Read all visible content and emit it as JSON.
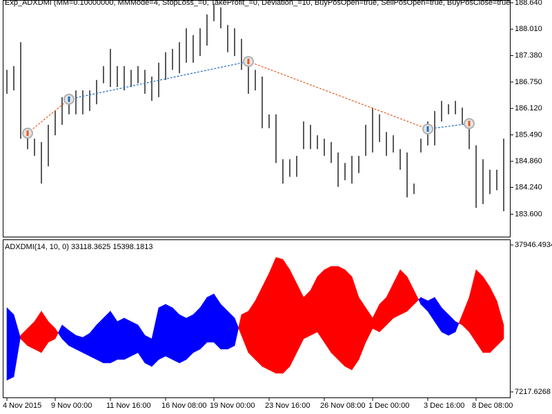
{
  "chart_data": [
    {
      "type": "ohlc",
      "title": "Exp_ADXDMI (MM=0.10000000, MMMode=4, StopLoss_=0, TakeProfit_=0, Deviation_=10, BuyPosOpen=true, SellPosOpen=true, BuyPosClose=true",
      "color": "#000000",
      "high": [
        187.04,
        187.13,
        187.7,
        185.65,
        185.4,
        185.32,
        185.73,
        186.06,
        186.39,
        186.47,
        186.55,
        186.55,
        186.55,
        186.8,
        187.13,
        187.54,
        187.13,
        187.13,
        187.04,
        187.13,
        187.04,
        186.88,
        187.21,
        187.46,
        187.54,
        187.7,
        188.03,
        187.87,
        188.03,
        188.36,
        188.61,
        188.53,
        188.11,
        188.03,
        187.78,
        187.29,
        187.04,
        186.88,
        185.98,
        185.98,
        184.91,
        184.91,
        184.99,
        185.81,
        185.73,
        185.48,
        185.4,
        185.32,
        185.07,
        184.82,
        184.99,
        184.99,
        185.73,
        186.14,
        185.98,
        185.56,
        185.48,
        185.15,
        185.07,
        184.33,
        185.4,
        185.81,
        186.06,
        186.3,
        186.22,
        186.3,
        186.14,
        185.73,
        185.24,
        184.91,
        184.66,
        184.66,
        185.4
      ],
      "low": [
        186.47,
        186.55,
        185.4,
        185.15,
        184.99,
        184.33,
        184.74,
        185.48,
        185.73,
        185.98,
        185.98,
        185.98,
        186.06,
        186.22,
        186.72,
        186.63,
        186.63,
        186.55,
        186.63,
        186.72,
        186.47,
        186.3,
        186.39,
        186.8,
        187.04,
        186.96,
        187.21,
        187.21,
        187.37,
        187.62,
        188.2,
        188.03,
        187.46,
        187.37,
        187.04,
        186.47,
        186.55,
        185.65,
        185.65,
        184.82,
        184.33,
        184.49,
        184.49,
        185.15,
        185.15,
        185.15,
        184.99,
        184.82,
        184.25,
        184.41,
        184.33,
        184.58,
        184.99,
        185.07,
        185.32,
        184.99,
        185.07,
        184.66,
        184.0,
        184.08,
        185.07,
        185.24,
        185.24,
        185.81,
        185.98,
        185.98,
        185.73,
        185.15,
        183.75,
        183.84,
        184.08,
        184.17,
        183.67
      ],
      "ylim": [
        183.047,
        188.689
      ],
      "yticks": [
        {
          "value": 188.64,
          "label": "188.640"
        },
        {
          "value": 188.01,
          "label": "188.010"
        },
        {
          "value": 187.38,
          "label": "187.380"
        },
        {
          "value": 186.75,
          "label": "186.750"
        },
        {
          "value": 186.12,
          "label": "186.120"
        },
        {
          "value": 185.49,
          "label": "185.490"
        },
        {
          "value": 184.86,
          "label": "184.860"
        },
        {
          "value": 184.24,
          "label": "184.240"
        },
        {
          "value": 183.6,
          "label": "183.600"
        }
      ],
      "xticks": [
        {
          "value": 0,
          "label": "4 Nov 2015"
        },
        {
          "value": 7,
          "label": "9 Nov 00:00"
        },
        {
          "value": 15,
          "label": "11 Nov 16:00"
        },
        {
          "value": 23,
          "label": "16 Nov 08:00"
        },
        {
          "value": 30,
          "label": "19 Nov 00:00"
        },
        {
          "value": 38,
          "label": "23 Nov 16:00"
        },
        {
          "value": 46,
          "label": "26 Nov 08:00"
        },
        {
          "value": 53,
          "label": "1 Dec 00:00"
        },
        {
          "value": 61,
          "label": "3 Dec 16:00"
        },
        {
          "value": 68,
          "label": "8 Dec 08:00"
        }
      ],
      "deals": [
        {
          "bar": 3,
          "price": 185.53,
          "color": "#e8591a"
        },
        {
          "bar": 9,
          "price": 186.34,
          "color": "#1f6fc0"
        },
        {
          "bar": 35,
          "price": 187.24,
          "color": "#e8591a"
        },
        {
          "bar": 61,
          "price": 185.63,
          "color": "#1f6fc0"
        },
        {
          "bar": 67,
          "price": 185.76,
          "color": "#e8591a"
        }
      ]
    },
    {
      "type": "filled-lines",
      "title": "ADXDMI(14, 10, 0) 33118.3625 15398.1813",
      "up_color": "#0000ff",
      "down_color": "#ff0000",
      "series": [
        {
          "values": [
            24818,
            23375,
            18325,
            16883,
            16161,
            15440,
            17604,
            18325,
            21211,
            20057,
            19047,
            18614,
            19480,
            21211,
            22654,
            24096,
            21932,
            22654,
            21932,
            21211,
            19047,
            18325,
            24818,
            25539,
            24818,
            23375,
            22654,
            23375,
            24818,
            26982,
            27703,
            25539,
            24096,
            22654,
            19047,
            15440,
            13997,
            12554,
            11833,
            11112,
            11112,
            12554,
            15440,
            18325,
            19047,
            19768,
            17604,
            15440,
            13997,
            12554,
            11833,
            13997,
            17604,
            20490,
            19768,
            21211,
            22654,
            23375,
            24096,
            25539,
            26982,
            26261,
            26982,
            24818,
            23375,
            21932,
            21211,
            19768,
            17604,
            15440,
            15440,
            16883,
            18325
          ]
        },
        {
          "values": [
            9669,
            10390,
            19047,
            20490,
            21932,
            24096,
            21932,
            20490,
            18325,
            16883,
            16161,
            15440,
            14718,
            13997,
            13276,
            13276,
            13997,
            13997,
            14718,
            15440,
            13276,
            12554,
            13997,
            14718,
            13997,
            13276,
            13997,
            15440,
            16161,
            17604,
            17604,
            16161,
            16161,
            16883,
            23375,
            24096,
            26261,
            29146,
            32031,
            35349,
            34917,
            32752,
            29869,
            26982,
            28424,
            31310,
            32752,
            33474,
            33474,
            32752,
            31310,
            26982,
            24818,
            22654,
            25539,
            26982,
            29869,
            32752,
            31310,
            28424,
            25539,
            24096,
            21932,
            19768,
            19047,
            19768,
            23375,
            26982,
            32752,
            31310,
            29146,
            26261,
            21211
          ]
        }
      ],
      "ylim": [
        6063,
        38956
      ],
      "yticks": [
        37946.4934,
        7217.6268
      ]
    }
  ]
}
